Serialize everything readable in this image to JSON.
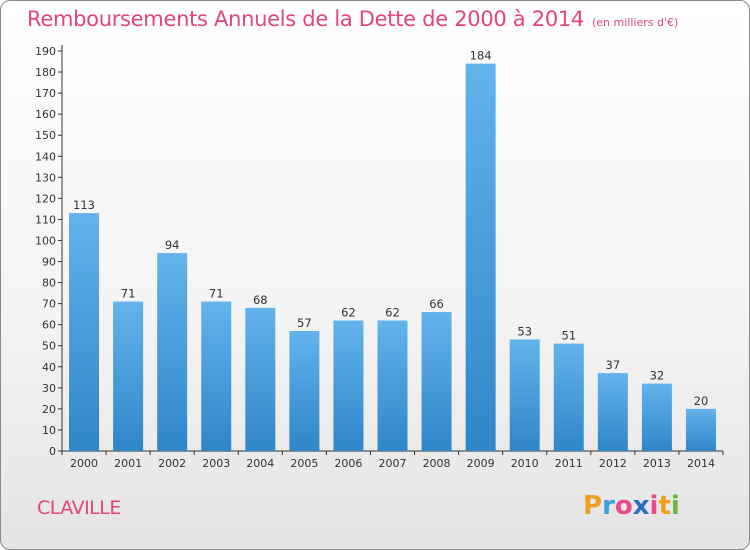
{
  "title": "Remboursements Annuels de la Dette de 2000 à 2014",
  "unit_note": "(en milliers d'€)",
  "commune": "CLAVILLE",
  "logo": {
    "letters": [
      "P",
      "r",
      "o",
      "x",
      "i",
      "t",
      "i"
    ],
    "colors": [
      "#f0a020",
      "#3aa0d8",
      "#e84a8a",
      "#2a6fc0",
      "#e84a8a",
      "#f0a020",
      "#6ab84a"
    ]
  },
  "colors": {
    "title": "#e2457a",
    "bar_light": "#63b3ec",
    "bar_dark": "#2f86c8"
  },
  "chart_data": {
    "type": "bar",
    "title": "Remboursements Annuels de la Dette de 2000 à 2014",
    "xlabel": "",
    "ylabel": "",
    "categories": [
      "2000",
      "2001",
      "2002",
      "2003",
      "2004",
      "2005",
      "2006",
      "2007",
      "2008",
      "2009",
      "2010",
      "2011",
      "2012",
      "2013",
      "2014"
    ],
    "values": [
      113,
      71,
      94,
      71,
      68,
      57,
      62,
      62,
      66,
      184,
      53,
      51,
      37,
      32,
      20
    ],
    "ylim": [
      0,
      190
    ],
    "ytick_step": 10,
    "grid": false,
    "legend": "none"
  }
}
